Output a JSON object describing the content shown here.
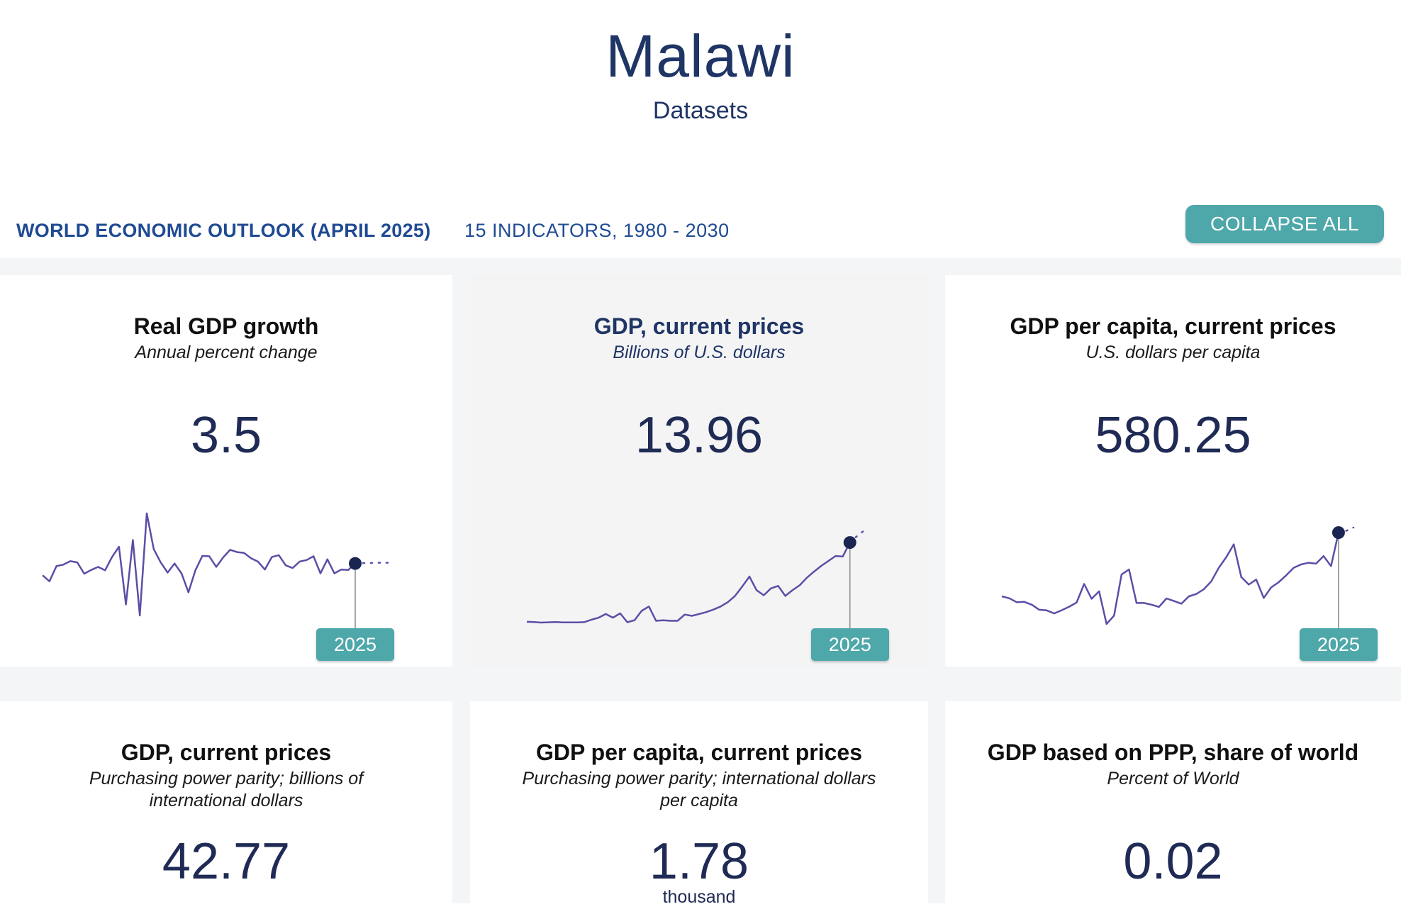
{
  "header": {
    "title": "Malawi",
    "subtitle": "Datasets"
  },
  "dataset": {
    "name": "WORLD ECONOMIC OUTLOOK (APRIL 2025)",
    "meta": "15 INDICATORS, 1980 - 2030",
    "collapse_label": "COLLAPSE ALL"
  },
  "colors": {
    "accent": "#4ea7a9",
    "line": "#5a4fa6",
    "marker": "#1a2552",
    "title": "#1f3565"
  },
  "cards": [
    {
      "title": "Real GDP growth",
      "unit": "Annual percent change",
      "value": "3.5",
      "badge_year": "2025",
      "chart_data": {
        "type": "line",
        "x_start": 1980,
        "highlight_year": 2025,
        "forecast_from": 2025,
        "values": [
          0.4,
          -1.2,
          2.8,
          3.2,
          4.1,
          3.8,
          0.8,
          1.8,
          2.6,
          1.7,
          5.2,
          7.9,
          -7.3,
          9.7,
          -10.2,
          16.7,
          7.3,
          3.8,
          1.1,
          3.5,
          0.9,
          -4.1,
          1.7,
          5.5,
          5.4,
          2.6,
          5.1,
          7.1,
          6.5,
          6.3,
          4.9,
          4.0,
          1.9,
          5.2,
          5.7,
          3.0,
          2.3,
          4.0,
          4.4,
          5.4,
          0.9,
          4.6,
          0.9,
          1.9,
          1.8,
          3.5,
          3.6,
          3.6,
          3.7,
          3.7,
          3.7
        ]
      }
    },
    {
      "title": "GDP, current prices",
      "unit": "Billions of U.S. dollars",
      "value": "13.96",
      "badge_year": "2025",
      "chart_data": {
        "type": "line",
        "x_start": 1980,
        "highlight_year": 2025,
        "forecast_from": 2025,
        "values": [
          1.24,
          1.2,
          1.12,
          1.16,
          1.2,
          1.14,
          1.15,
          1.14,
          1.19,
          1.57,
          1.9,
          2.5,
          1.9,
          2.6,
          1.18,
          1.5,
          3.0,
          3.7,
          1.4,
          1.5,
          1.4,
          1.4,
          2.4,
          2.2,
          2.5,
          2.8,
          3.2,
          3.7,
          4.4,
          5.4,
          6.9,
          8.5,
          6.3,
          5.5,
          6.6,
          7.0,
          5.4,
          6.3,
          7.1,
          8.3,
          9.3,
          10.2,
          11.0,
          11.8,
          11.7,
          13.96,
          15.0,
          15.9
        ]
      }
    },
    {
      "title": "GDP per capita, current prices",
      "unit": "U.S. dollars per capita",
      "value": "580.25",
      "badge_year": "2025",
      "chart_data": {
        "type": "line",
        "x_start": 1980,
        "highlight_year": 2025,
        "forecast_from": 2025,
        "values": [
          200,
          188,
          165,
          167,
          150,
          120,
          116,
          98,
          117,
          138,
          163,
          274,
          185,
          230,
          35,
          85,
          330,
          360,
          160,
          160,
          150,
          137,
          187,
          172,
          156,
          200,
          214,
          242,
          290,
          370,
          434,
          510,
          315,
          270,
          300,
          190,
          253,
          284,
          325,
          370,
          390,
          400,
          395,
          440,
          380,
          580,
          590,
          610
        ]
      }
    },
    {
      "title": "GDP, current prices",
      "unit": "Purchasing power parity; billions of international dollars",
      "value": "42.77"
    },
    {
      "title": "GDP per capita, current prices",
      "unit": "Purchasing power parity; international dollars per capita",
      "value": "1.78",
      "scale": "thousand"
    },
    {
      "title": "GDP based on PPP, share of world",
      "unit": "Percent of World",
      "value": "0.02"
    }
  ]
}
